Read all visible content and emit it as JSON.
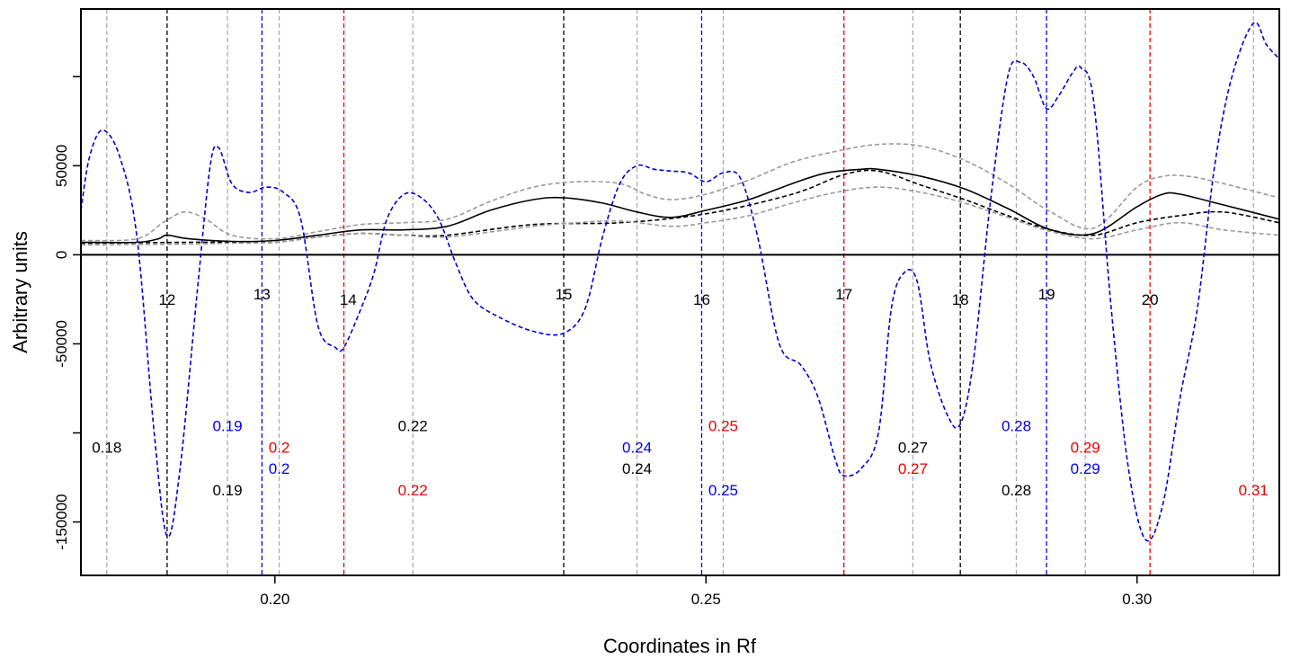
{
  "chart_data": {
    "type": "line",
    "xlabel": "Coordinates in Rf",
    "ylabel": "Arbitrary units",
    "xlim": [
      0.1775,
      0.3165
    ],
    "ylim": [
      -180000,
      138000
    ],
    "x_ticks": [
      {
        "value": 0.2,
        "label": "0.20"
      },
      {
        "value": 0.25,
        "label": "0.25"
      },
      {
        "value": 0.3,
        "label": "0.30"
      }
    ],
    "y_ticks": [
      {
        "value": 50000,
        "label": "50000"
      },
      {
        "value": 0,
        "label": "0"
      },
      {
        "value": -50000,
        "label": "-50000"
      },
      {
        "value": -150000,
        "label": "-150000"
      }
    ],
    "y_minor_ticks": [
      100000,
      -100000
    ],
    "zero_line": true,
    "series": [
      {
        "style": "solid",
        "color": "#000000",
        "x": [
          0.1775,
          0.184,
          0.1865,
          0.1875,
          0.19,
          0.195,
          0.2,
          0.205,
          0.21,
          0.215,
          0.22,
          0.225,
          0.23,
          0.2335,
          0.238,
          0.242,
          0.246,
          0.25,
          0.255,
          0.26,
          0.264,
          0.268,
          0.27,
          0.275,
          0.28,
          0.285,
          0.29,
          0.295,
          0.3,
          0.303,
          0.305,
          0.31,
          0.3165
        ],
        "y": [
          7000,
          7000,
          9000,
          11000,
          9000,
          7500,
          8000,
          11000,
          14000,
          14000,
          16000,
          25000,
          31000,
          32000,
          29000,
          24000,
          21000,
          25000,
          31000,
          40000,
          46000,
          48000,
          48000,
          44000,
          37000,
          26000,
          14000,
          12000,
          27000,
          34000,
          34000,
          28000,
          20000
        ]
      },
      {
        "style": "dashed",
        "color": "#000000",
        "x": [
          0.1775,
          0.19,
          0.195,
          0.2,
          0.205,
          0.21,
          0.215,
          0.22,
          0.23,
          0.24,
          0.25,
          0.26,
          0.266,
          0.27,
          0.275,
          0.28,
          0.285,
          0.29,
          0.295,
          0.3,
          0.305,
          0.31,
          0.3165
        ],
        "y": [
          6500,
          7000,
          7000,
          7000,
          10000,
          12000,
          11000,
          11000,
          17000,
          18000,
          23000,
          34000,
          45000,
          47000,
          39000,
          31000,
          22000,
          14000,
          11000,
          18000,
          22000,
          24000,
          18000
        ]
      },
      {
        "style": "dashed",
        "color": "#999999",
        "x": [
          0.1775,
          0.184,
          0.187,
          0.1895,
          0.192,
          0.195,
          0.2,
          0.205,
          0.21,
          0.215,
          0.22,
          0.225,
          0.23,
          0.235,
          0.24,
          0.243,
          0.246,
          0.25,
          0.255,
          0.26,
          0.265,
          0.27,
          0.275,
          0.28,
          0.285,
          0.29,
          0.295,
          0.3,
          0.303,
          0.306,
          0.31,
          0.3165
        ],
        "y": [
          8000,
          9000,
          18000,
          24000,
          20000,
          11000,
          9000,
          13000,
          17000,
          18000,
          20000,
          30000,
          38000,
          41000,
          40000,
          34000,
          31000,
          34000,
          42000,
          52000,
          58000,
          62000,
          61000,
          53000,
          40000,
          24000,
          15000,
          38000,
          44000,
          44000,
          40000,
          32000
        ]
      },
      {
        "style": "dashed",
        "color": "#999999",
        "x": [
          0.1775,
          0.19,
          0.195,
          0.2,
          0.205,
          0.21,
          0.215,
          0.22,
          0.23,
          0.235,
          0.24,
          0.246,
          0.25,
          0.255,
          0.26,
          0.265,
          0.27,
          0.275,
          0.28,
          0.285,
          0.29,
          0.295,
          0.3,
          0.305,
          0.31,
          0.3165
        ],
        "y": [
          5500,
          6000,
          6500,
          7000,
          10000,
          12000,
          11000,
          10000,
          16000,
          18000,
          19000,
          16000,
          18000,
          22000,
          29000,
          35000,
          38000,
          35000,
          29000,
          21000,
          13000,
          9000,
          14000,
          18000,
          14000,
          11000
        ]
      },
      {
        "style": "dashed",
        "color": "#0000cc",
        "x": [
          0.1775,
          0.1785,
          0.18,
          0.182,
          0.184,
          0.186,
          0.1875,
          0.189,
          0.191,
          0.1925,
          0.1935,
          0.195,
          0.197,
          0.199,
          0.201,
          0.203,
          0.205,
          0.207,
          0.208,
          0.21,
          0.2115,
          0.213,
          0.215,
          0.217,
          0.219,
          0.221,
          0.223,
          0.226,
          0.23,
          0.2335,
          0.236,
          0.238,
          0.24,
          0.242,
          0.244,
          0.246,
          0.248,
          0.25,
          0.252,
          0.254,
          0.256,
          0.2585,
          0.261,
          0.263,
          0.265,
          0.266,
          0.268,
          0.27,
          0.2715,
          0.273,
          0.2745,
          0.276,
          0.278,
          0.2795,
          0.281,
          0.283,
          0.285,
          0.2865,
          0.288,
          0.2895,
          0.291,
          0.2925,
          0.2935,
          0.295,
          0.297,
          0.299,
          0.301,
          0.303,
          0.305,
          0.307,
          0.309,
          0.311,
          0.3135,
          0.315,
          0.3165
        ],
        "y": [
          25000,
          55000,
          70000,
          55000,
          10000,
          -100000,
          -158000,
          -120000,
          -20000,
          50000,
          60000,
          40000,
          35000,
          38000,
          35000,
          20000,
          -40000,
          -52000,
          -52000,
          -30000,
          -10000,
          20000,
          34000,
          32000,
          20000,
          -5000,
          -25000,
          -35000,
          -43000,
          -44000,
          -30000,
          10000,
          40000,
          50000,
          48000,
          47000,
          46000,
          41000,
          46000,
          43000,
          10000,
          -50000,
          -62000,
          -80000,
          -115000,
          -124000,
          -120000,
          -100000,
          -30000,
          -10000,
          -15000,
          -60000,
          -90000,
          -95000,
          -60000,
          30000,
          100000,
          108000,
          100000,
          82000,
          90000,
          102000,
          105000,
          85000,
          -30000,
          -120000,
          -160000,
          -140000,
          -80000,
          -30000,
          50000,
          100000,
          130000,
          118000,
          110000
        ]
      }
    ],
    "vlines": [
      {
        "x": 0.1805,
        "color": "#aaaaaa"
      },
      {
        "x": 0.1875,
        "color": "#000000"
      },
      {
        "x": 0.1945,
        "color": "#aaaaaa"
      },
      {
        "x": 0.1985,
        "color": "#0000ee"
      },
      {
        "x": 0.2005,
        "color": "#aaaaaa"
      },
      {
        "x": 0.208,
        "color": "#ee0000"
      },
      {
        "x": 0.216,
        "color": "#aaaaaa"
      },
      {
        "x": 0.2335,
        "color": "#000000"
      },
      {
        "x": 0.242,
        "color": "#aaaaaa"
      },
      {
        "x": 0.2495,
        "color": "#0000ee"
      },
      {
        "x": 0.252,
        "color": "#aaaaaa"
      },
      {
        "x": 0.266,
        "color": "#ee0000"
      },
      {
        "x": 0.274,
        "color": "#aaaaaa"
      },
      {
        "x": 0.2795,
        "color": "#000000"
      },
      {
        "x": 0.286,
        "color": "#aaaaaa"
      },
      {
        "x": 0.2895,
        "color": "#0000ee"
      },
      {
        "x": 0.294,
        "color": "#aaaaaa"
      },
      {
        "x": 0.3015,
        "color": "#ee0000"
      },
      {
        "x": 0.3135,
        "color": "#aaaaaa"
      }
    ],
    "annotations": [
      {
        "text": "12",
        "x": 0.1875,
        "y": -25000,
        "color": "#000000"
      },
      {
        "text": "13",
        "x": 0.1985,
        "y": -22000,
        "color": "#000000"
      },
      {
        "text": "14",
        "x": 0.2085,
        "y": -25000,
        "color": "#000000"
      },
      {
        "text": "15",
        "x": 0.2335,
        "y": -22000,
        "color": "#000000"
      },
      {
        "text": "16",
        "x": 0.2495,
        "y": -25000,
        "color": "#000000"
      },
      {
        "text": "17",
        "x": 0.266,
        "y": -22000,
        "color": "#000000"
      },
      {
        "text": "18",
        "x": 0.2795,
        "y": -25000,
        "color": "#000000"
      },
      {
        "text": "19",
        "x": 0.2895,
        "y": -22000,
        "color": "#000000"
      },
      {
        "text": "20",
        "x": 0.3015,
        "y": -25000,
        "color": "#000000"
      },
      {
        "text": "0.18",
        "x": 0.1805,
        "y": -108000,
        "color": "#000000"
      },
      {
        "text": "0.19",
        "x": 0.1945,
        "y": -96000,
        "color": "#0000ee"
      },
      {
        "text": "0.19",
        "x": 0.1945,
        "y": -132000,
        "color": "#000000"
      },
      {
        "text": "0.2",
        "x": 0.2005,
        "y": -108000,
        "color": "#ee0000"
      },
      {
        "text": "0.2",
        "x": 0.2005,
        "y": -120000,
        "color": "#0000ee"
      },
      {
        "text": "0.22",
        "x": 0.216,
        "y": -96000,
        "color": "#000000"
      },
      {
        "text": "0.22",
        "x": 0.216,
        "y": -132000,
        "color": "#ee0000"
      },
      {
        "text": "0.24",
        "x": 0.242,
        "y": -108000,
        "color": "#0000ee"
      },
      {
        "text": "0.24",
        "x": 0.242,
        "y": -120000,
        "color": "#000000"
      },
      {
        "text": "0.25",
        "x": 0.252,
        "y": -96000,
        "color": "#ee0000"
      },
      {
        "text": "0.25",
        "x": 0.252,
        "y": -132000,
        "color": "#0000ee"
      },
      {
        "text": "0.27",
        "x": 0.274,
        "y": -108000,
        "color": "#000000"
      },
      {
        "text": "0.27",
        "x": 0.274,
        "y": -120000,
        "color": "#ee0000"
      },
      {
        "text": "0.28",
        "x": 0.286,
        "y": -96000,
        "color": "#0000ee"
      },
      {
        "text": "0.28",
        "x": 0.286,
        "y": -132000,
        "color": "#000000"
      },
      {
        "text": "0.29",
        "x": 0.294,
        "y": -108000,
        "color": "#ee0000"
      },
      {
        "text": "0.29",
        "x": 0.294,
        "y": -120000,
        "color": "#0000ee"
      },
      {
        "text": "0.31",
        "x": 0.3135,
        "y": -132000,
        "color": "#ee0000"
      }
    ]
  }
}
